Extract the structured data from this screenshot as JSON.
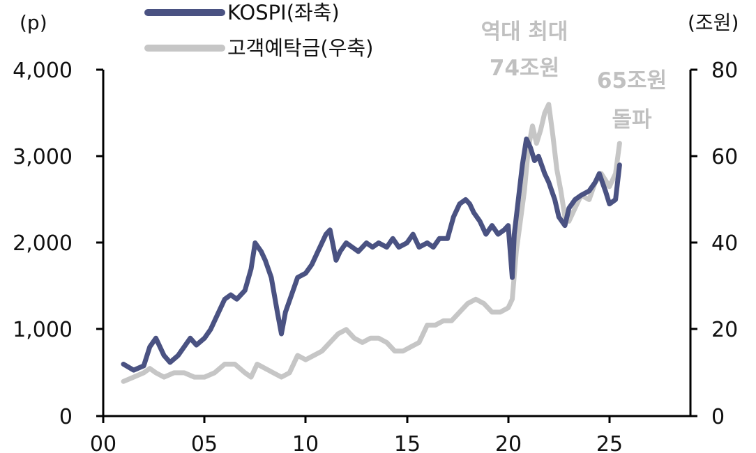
{
  "chart_data": {
    "type": "line",
    "colors": {
      "kospi": "#4a5282",
      "deposits": "#c6c6c6",
      "axis": "#000000"
    },
    "left_axis": {
      "unit": "(p)",
      "ylim": [
        0,
        4000
      ],
      "ticks": [
        "0",
        "1,000",
        "2,000",
        "3,000",
        "4,000"
      ]
    },
    "right_axis": {
      "unit": "(조원)",
      "ylim": [
        0,
        80
      ],
      "ticks": [
        "0",
        "20",
        "40",
        "60",
        "80"
      ]
    },
    "x_axis": {
      "xlim": [
        0,
        29
      ],
      "ticks": [
        "00",
        "05",
        "10",
        "15",
        "20",
        "25"
      ]
    },
    "legend": [
      {
        "label": "KOSPI(좌축)",
        "color": "#4a5282"
      },
      {
        "label": "고객예탁금(우축)",
        "color": "#c6c6c6"
      }
    ],
    "annotations": [
      {
        "lines": [
          "역대 최대",
          "74조원"
        ]
      },
      {
        "lines": [
          "65조원",
          "돌파"
        ]
      }
    ],
    "series": [
      {
        "name": "KOSPI(좌축)",
        "axis": "left",
        "x": [
          1.0,
          1.5,
          2.0,
          2.3,
          2.6,
          3.0,
          3.3,
          3.7,
          4.0,
          4.3,
          4.6,
          5.0,
          5.3,
          5.6,
          6.0,
          6.3,
          6.6,
          7.0,
          7.3,
          7.5,
          7.8,
          8.0,
          8.3,
          8.6,
          8.8,
          9.0,
          9.3,
          9.6,
          10.0,
          10.3,
          10.6,
          11.0,
          11.2,
          11.5,
          11.7,
          12.0,
          12.3,
          12.6,
          13.0,
          13.3,
          13.6,
          14.0,
          14.3,
          14.6,
          15.0,
          15.3,
          15.6,
          16.0,
          16.3,
          16.6,
          17.0,
          17.3,
          17.6,
          17.9,
          18.1,
          18.3,
          18.6,
          18.9,
          19.2,
          19.5,
          19.8,
          20.0,
          20.2,
          20.3,
          20.5,
          20.7,
          20.9,
          21.1,
          21.3,
          21.5,
          21.8,
          22.0,
          22.3,
          22.5,
          22.8,
          23.0,
          23.3,
          23.6,
          24.0,
          24.3,
          24.5,
          24.8,
          25.0,
          25.3,
          25.5
        ],
        "values": [
          600,
          530,
          580,
          800,
          900,
          700,
          620,
          700,
          800,
          900,
          820,
          900,
          1000,
          1150,
          1350,
          1400,
          1350,
          1450,
          1700,
          2000,
          1900,
          1800,
          1600,
          1200,
          950,
          1200,
          1400,
          1600,
          1650,
          1750,
          1900,
          2100,
          2150,
          1800,
          1900,
          2000,
          1950,
          1900,
          2000,
          1950,
          2000,
          1950,
          2050,
          1950,
          2000,
          2100,
          1950,
          2000,
          1950,
          2050,
          2050,
          2300,
          2450,
          2500,
          2450,
          2350,
          2250,
          2100,
          2200,
          2100,
          2150,
          2200,
          1600,
          2100,
          2500,
          2900,
          3200,
          3100,
          2950,
          3000,
          2800,
          2700,
          2500,
          2300,
          2200,
          2400,
          2500,
          2550,
          2600,
          2700,
          2800,
          2600,
          2450,
          2500,
          2900
        ]
      },
      {
        "name": "고객예탁금(우축)",
        "axis": "right",
        "x": [
          1.0,
          1.5,
          2.0,
          2.3,
          2.6,
          3.0,
          3.5,
          4.0,
          4.5,
          5.0,
          5.5,
          6.0,
          6.5,
          7.0,
          7.3,
          7.6,
          8.0,
          8.4,
          8.8,
          9.2,
          9.6,
          10.0,
          10.4,
          10.8,
          11.2,
          11.6,
          12.0,
          12.4,
          12.8,
          13.2,
          13.6,
          14.0,
          14.4,
          14.8,
          15.2,
          15.6,
          16.0,
          16.4,
          16.8,
          17.2,
          17.6,
          18.0,
          18.4,
          18.8,
          19.2,
          19.6,
          20.0,
          20.2,
          20.4,
          20.6,
          20.8,
          21.0,
          21.2,
          21.4,
          21.6,
          21.8,
          22.0,
          22.2,
          22.4,
          22.6,
          22.8,
          23.0,
          23.3,
          23.6,
          24.0,
          24.3,
          24.6,
          25.0,
          25.3,
          25.5
        ],
        "values": [
          8,
          9,
          10,
          11,
          10,
          9,
          10,
          10,
          9,
          9,
          10,
          12,
          12,
          10,
          9,
          12,
          11,
          10,
          9,
          10,
          14,
          13,
          14,
          15,
          17,
          19,
          20,
          18,
          17,
          18,
          18,
          17,
          15,
          15,
          16,
          17,
          21,
          21,
          22,
          22,
          24,
          26,
          27,
          26,
          24,
          24,
          25,
          27,
          38,
          45,
          52,
          62,
          67,
          63,
          66,
          70,
          72,
          65,
          57,
          52,
          46,
          45,
          48,
          51,
          50,
          54,
          56,
          53,
          56,
          63
        ]
      }
    ]
  }
}
